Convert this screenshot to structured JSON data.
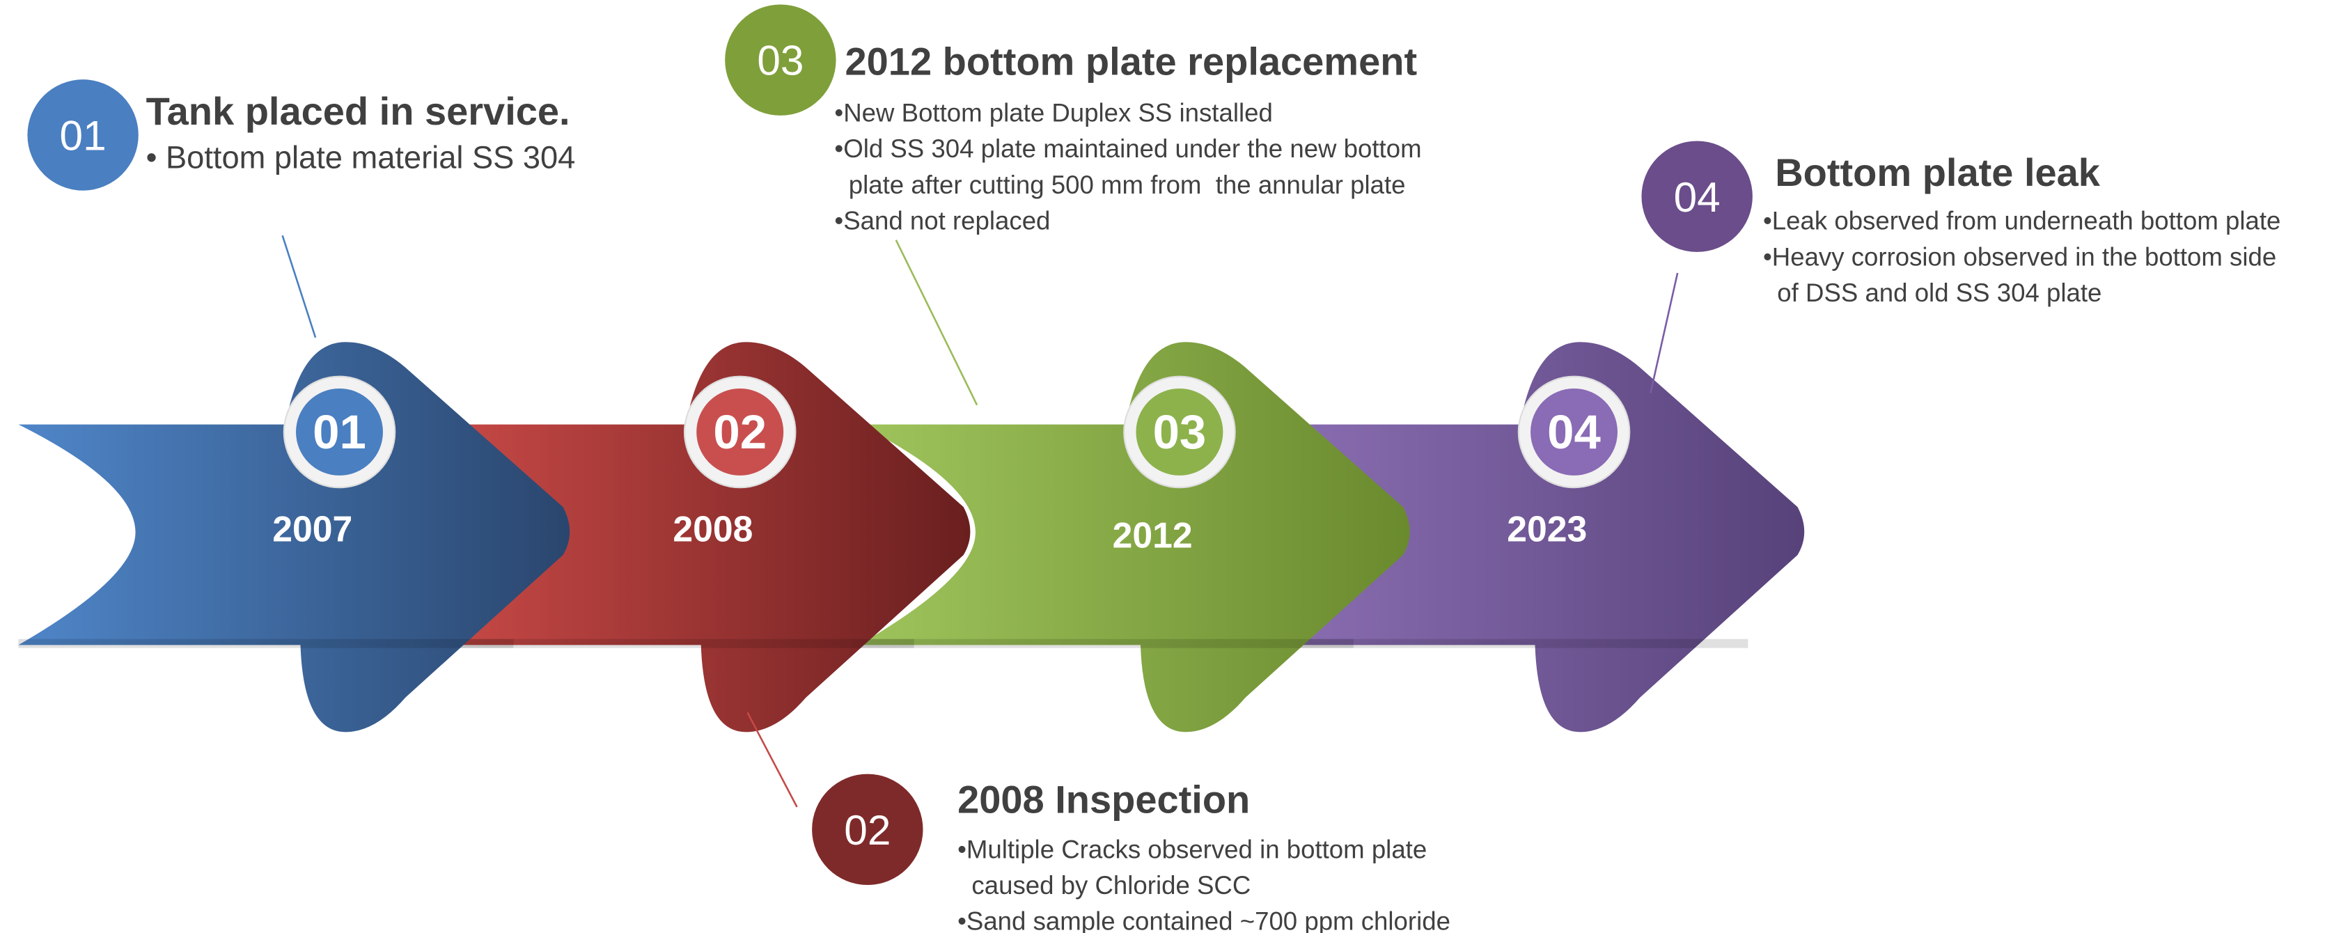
{
  "steps": [
    {
      "badge": "01",
      "year": "2007",
      "title": "Tank placed in service.",
      "bullets": [
        "• Bottom plate material SS 304"
      ]
    },
    {
      "badge": "02",
      "year": "2008",
      "title": "2008 Inspection",
      "bullets": [
        "•Multiple Cracks observed in bottom plate",
        "  caused by Chloride SCC",
        "•Sand sample contained ~700 ppm chloride"
      ]
    },
    {
      "badge": "03",
      "year": "2012",
      "title": "2012 bottom plate replacement",
      "bullets": [
        "•New Bottom plate Duplex SS installed",
        "•Old SS 304 plate maintained under the new bottom",
        "  plate after cutting 500 mm from  the annular plate",
        "•Sand not replaced"
      ]
    },
    {
      "badge": "04",
      "year": "2023",
      "title": "Bottom plate leak",
      "bullets": [
        "•Leak observed from underneath bottom plate",
        "•Heavy corrosion observed in the bottom side",
        "  of DSS and old SS 304 plate"
      ]
    }
  ]
}
